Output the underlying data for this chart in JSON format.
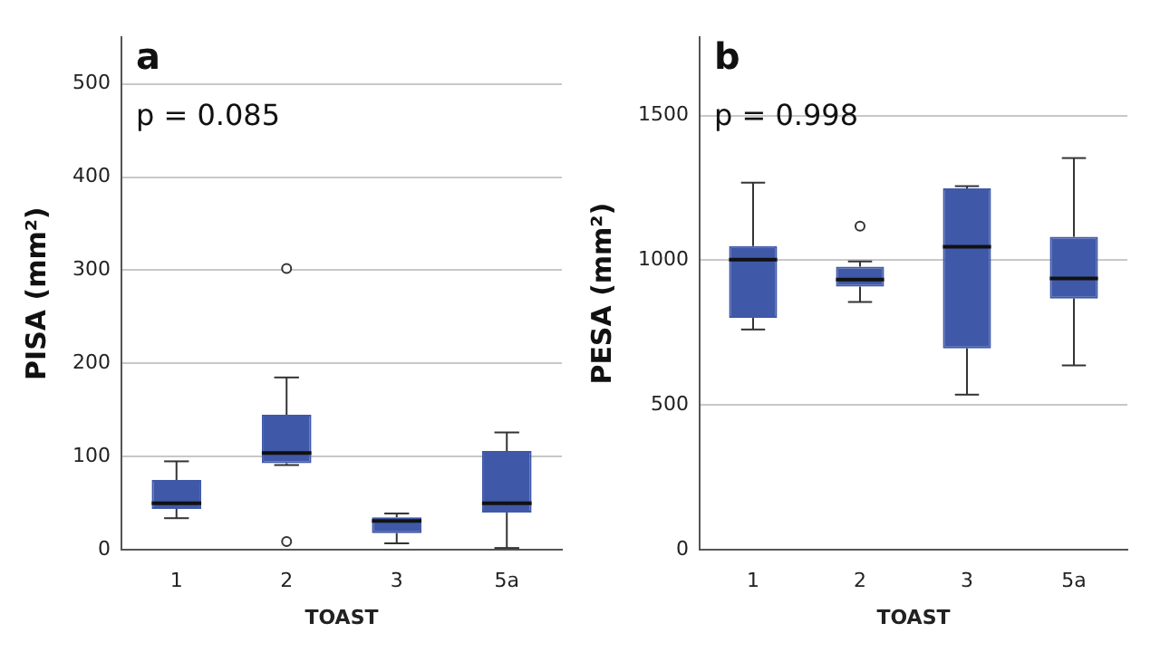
{
  "chart_data": [
    {
      "type": "box",
      "title": "a",
      "xlabel": "TOAST",
      "ylabel": "PISA (mm²)",
      "categories": [
        "1",
        "2",
        "3",
        "5a"
      ],
      "color": "#3f58a8",
      "boxes": [
        {
          "low": 34,
          "q1": 44,
          "median": 50,
          "q3": 75,
          "high": 95
        },
        {
          "low": 91,
          "q1": 93,
          "median": 104,
          "q3": 145,
          "high": 185,
          "outliers": [
            9,
            302
          ]
        },
        {
          "low": 7,
          "q1": 18,
          "median": 31,
          "q3": 35,
          "high": 39
        },
        {
          "low": 2,
          "q1": 40,
          "median": 50,
          "q3": 106,
          "high": 126
        }
      ],
      "ylim": [
        0,
        550
      ],
      "yticks": [
        0,
        100,
        200,
        300,
        400,
        500
      ],
      "grid": "y",
      "annotations": [
        "p = 0.085"
      ]
    },
    {
      "type": "box",
      "title": "b",
      "xlabel": "TOAST",
      "ylabel": "PESA (mm²)",
      "categories": [
        "1",
        "2",
        "3",
        "5a"
      ],
      "color": "#3f58a8",
      "boxes": [
        {
          "low": 761,
          "q1": 801,
          "median": 1002,
          "q3": 1049,
          "high": 1268
        },
        {
          "low": 856,
          "q1": 909,
          "median": 933,
          "q3": 978,
          "high": 996,
          "outliers": [
            1118
          ]
        },
        {
          "low": 536,
          "q1": 696,
          "median": 1047,
          "q3": 1248,
          "high": 1256
        },
        {
          "low": 637,
          "q1": 868,
          "median": 937,
          "q3": 1081,
          "high": 1353
        }
      ],
      "ylim": [
        0,
        1770
      ],
      "yticks": [
        0,
        500,
        1000,
        1500
      ],
      "grid": "y",
      "annotations": [
        "p = 0.998"
      ]
    }
  ]
}
